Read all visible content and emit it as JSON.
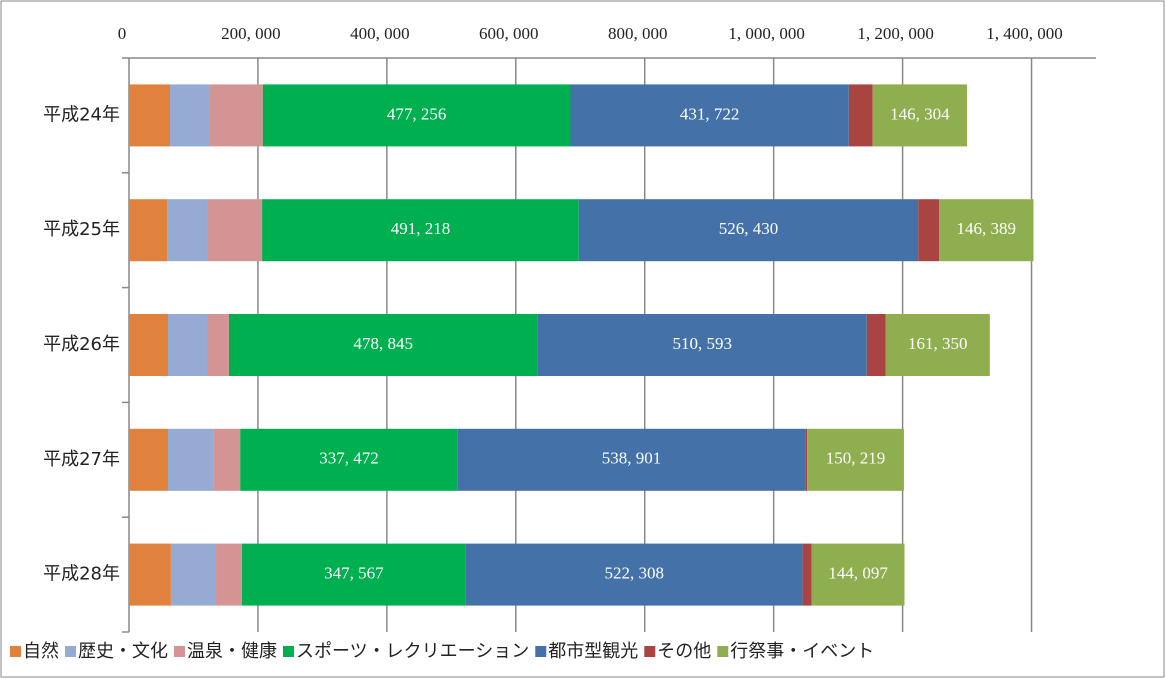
{
  "chart_data": {
    "type": "stacked_bar_horizontal",
    "categories": [
      "平成24年",
      "平成25年",
      "平成26年",
      "平成27年",
      "平成28年"
    ],
    "series": [
      {
        "name": "自然",
        "color": "#e0823e",
        "values": [
          63600,
          59000,
          60500,
          60500,
          65000
        ]
      },
      {
        "name": "歴史・文化",
        "color": "#96abd4",
        "values": [
          62000,
          63500,
          60500,
          70000,
          70000
        ]
      },
      {
        "name": "温泉・健康",
        "color": "#d49494",
        "values": [
          82000,
          84000,
          34000,
          42000,
          40000
        ]
      },
      {
        "name": "スポーツ・レクリエーション",
        "color": "#00b050",
        "values": [
          477256,
          491218,
          478845,
          337472,
          347567
        ],
        "value_labels": [
          "477, 256",
          "491, 218",
          "478, 845",
          "337, 472",
          "347, 567"
        ]
      },
      {
        "name": "都市型観光",
        "color": "#4472a8",
        "values": [
          431722,
          526430,
          510593,
          538901,
          522308
        ],
        "value_labels": [
          "431, 722",
          "526, 430",
          "510, 593",
          "538, 901",
          "522, 308"
        ]
      },
      {
        "name": "その他",
        "color": "#a94442",
        "values": [
          37000,
          32500,
          29500,
          3000,
          14000
        ]
      },
      {
        "name": "行祭事・イベント",
        "color": "#8fae50",
        "values": [
          146304,
          146389,
          161350,
          150219,
          144097
        ],
        "value_labels": [
          "146, 304",
          "146, 389",
          "161, 350",
          "150, 219",
          "144, 097"
        ]
      }
    ],
    "xlim": [
      0,
      1500000
    ],
    "xticks": [
      0,
      {
        "value": 200000,
        "label": "200, 000"
      },
      {
        "value": 400000,
        "label": "400, 000"
      },
      {
        "value": 600000,
        "label": "600, 000"
      },
      {
        "value": 800000,
        "label": "800, 000"
      },
      {
        "value": 1000000,
        "label": "1, 000, 000"
      },
      {
        "value": 1200000,
        "label": "1, 200, 000"
      },
      {
        "value": 1400000,
        "label": "1, 400, 000"
      }
    ],
    "grid": true,
    "legend": "bottom"
  }
}
